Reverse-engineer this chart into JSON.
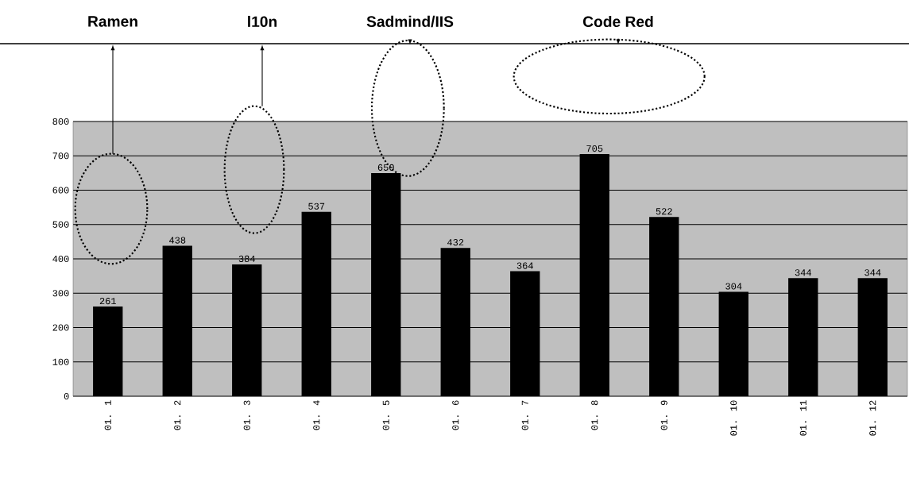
{
  "chart_data": {
    "type": "bar",
    "categories": [
      "01. 1",
      "01. 2",
      "01. 3",
      "01. 4",
      "01. 5",
      "01. 6",
      "01. 7",
      "01. 8",
      "01. 9",
      "01. 10",
      "01. 11",
      "01. 12"
    ],
    "values": [
      261,
      438,
      384,
      537,
      650,
      432,
      364,
      705,
      522,
      304,
      344,
      344
    ],
    "color": "#000000",
    "ylim": [
      0,
      800
    ],
    "yticks": [
      0,
      100,
      200,
      300,
      400,
      500,
      600,
      700,
      800
    ],
    "grid": "y",
    "data_labels": true,
    "annotations": [
      "Ramen",
      "l10n",
      "Sadmind/IIS",
      "Code Red"
    ]
  }
}
